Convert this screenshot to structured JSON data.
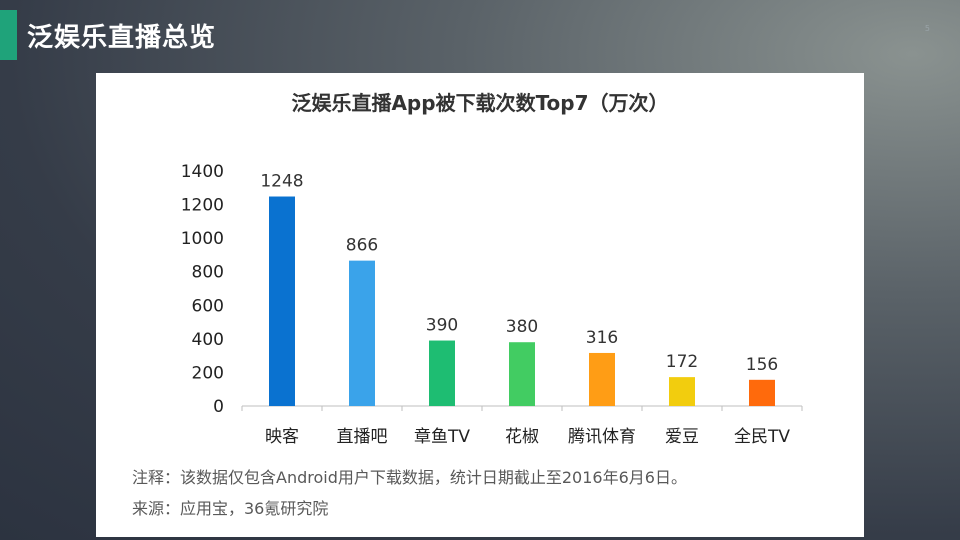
{
  "slide": {
    "title": "泛娱乐直播总览",
    "page_number": "5",
    "accent_color": "#1fa37a"
  },
  "chart_data": {
    "type": "bar",
    "title": "泛娱乐直播App被下载次数Top7（万次）",
    "categories": [
      "映客",
      "直播吧",
      "章鱼TV",
      "花椒",
      "腾讯体育",
      "爱豆",
      "全民TV"
    ],
    "values": [
      1248,
      866,
      390,
      380,
      316,
      172,
      156
    ],
    "colors": [
      "#0a72d0",
      "#3aa3ea",
      "#1ebd72",
      "#42cc62",
      "#ff9d15",
      "#f2cd0e",
      "#ff6a0c"
    ],
    "ylim": [
      0,
      1400
    ],
    "yticks": [
      0,
      200,
      400,
      600,
      800,
      1000,
      1200,
      1400
    ],
    "xlabel": "",
    "ylabel": "",
    "grid": false
  },
  "notes": {
    "note": "注释：该数据仅包含Android用户下载数据，统计日期截止至2016年6月6日。",
    "source": "来源：应用宝，36氪研究院"
  }
}
